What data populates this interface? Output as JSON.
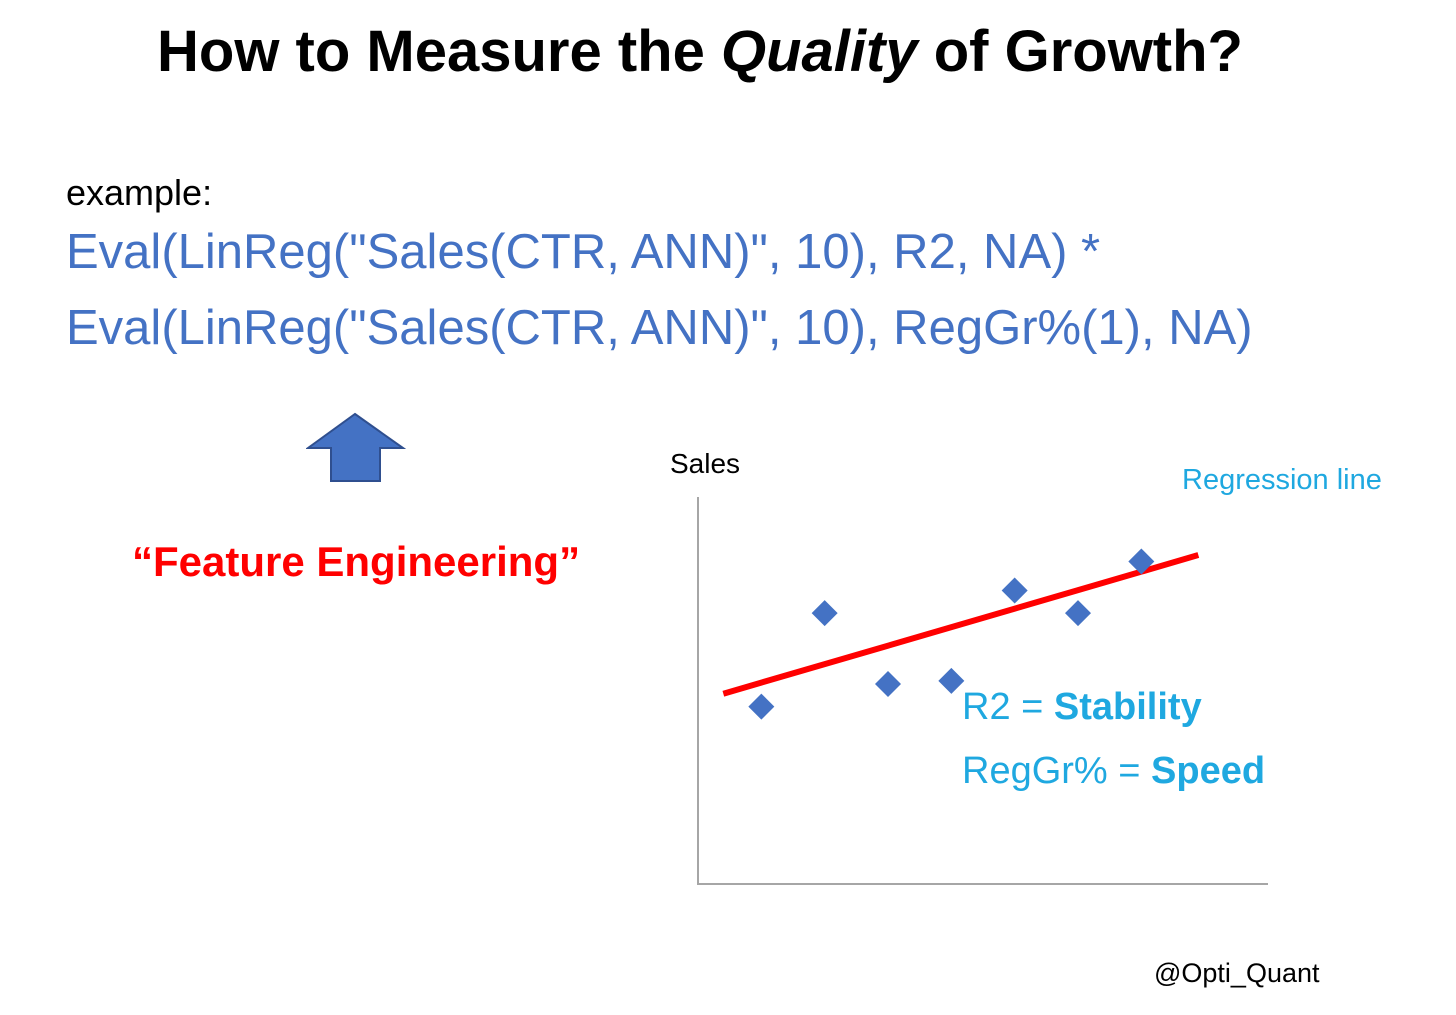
{
  "title": {
    "prefix": "How to Measure the ",
    "emphasis": "Quality",
    "suffix": " of Growth?"
  },
  "example_label": "example:",
  "formula": {
    "line1": "Eval(LinReg(\"Sales(CTR, ANN)\", 10), R2, NA) *",
    "line2": "Eval(LinReg(\"Sales(CTR, ANN)\", 10), RegGr%(1), NA)"
  },
  "arrow_icon": "up-arrow-icon",
  "feature_label": "“Feature Engineering”",
  "chart_data": {
    "type": "scatter",
    "ylabel": "Sales",
    "xlabel": "",
    "x": [
      1,
      2,
      3,
      4,
      5,
      6,
      7
    ],
    "y": [
      2.0,
      4.9,
      2.7,
      2.8,
      5.6,
      4.9,
      6.5
    ],
    "xlim": [
      0,
      9
    ],
    "ylim": [
      -3.5,
      8.5
    ],
    "regression_line": {
      "x": [
        0.4,
        7.9
      ],
      "y": [
        2.4,
        6.7
      ],
      "label": "Regression line"
    },
    "grid": false,
    "colors": {
      "points": "#4472c4",
      "line": "#ff0000",
      "axes": "#a6a6a6"
    }
  },
  "metrics": [
    {
      "name": "R2",
      "sep": " = ",
      "meaning": "Stability"
    },
    {
      "name": "RegGr%",
      "sep": " = ",
      "meaning": "Speed"
    }
  ],
  "handle": "@Opti_Quant"
}
